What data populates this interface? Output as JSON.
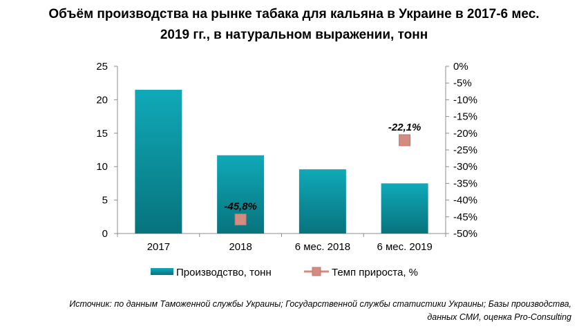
{
  "chart_data": {
    "type": "bar",
    "title_lines": [
      "Объём производства на рынке табака для кальяна в Украине в 2017-6 мес.",
      "2019 гг., в натуральном выражении, тонн"
    ],
    "categories": [
      "2017",
      "2018",
      "6 мес. 2018",
      "6 мес. 2019"
    ],
    "series": [
      {
        "name": "Производство,  тонн",
        "type": "bar",
        "axis": "left",
        "color": "#0aa2b1",
        "values": [
          21.5,
          11.7,
          9.6,
          7.5
        ]
      },
      {
        "name": "Темп  прироста,  %",
        "type": "marker",
        "axis": "right",
        "color": "#d38c82",
        "values": [
          null,
          -45.8,
          null,
          -22.1
        ],
        "labels": [
          "",
          "-45,8%",
          "",
          "-22,1%"
        ]
      }
    ],
    "y_left": {
      "min": 0,
      "max": 25,
      "ticks": [
        "0",
        "5",
        "10",
        "15",
        "20",
        "25"
      ]
    },
    "y_right": {
      "min": -50,
      "max": 0,
      "ticks": [
        "-50%",
        "-45%",
        "-40%",
        "-35%",
        "-30%",
        "-25%",
        "-20%",
        "-15%",
        "-10%",
        "-5%",
        "0%"
      ]
    },
    "grid": false,
    "legend_position": "bottom"
  },
  "source_lines": [
    "Источник: по данным Таможенной службы Украины; Государственной службы статистики Украины; Базы производства,",
    "данных СМИ, оценка Pro-Consulting"
  ]
}
